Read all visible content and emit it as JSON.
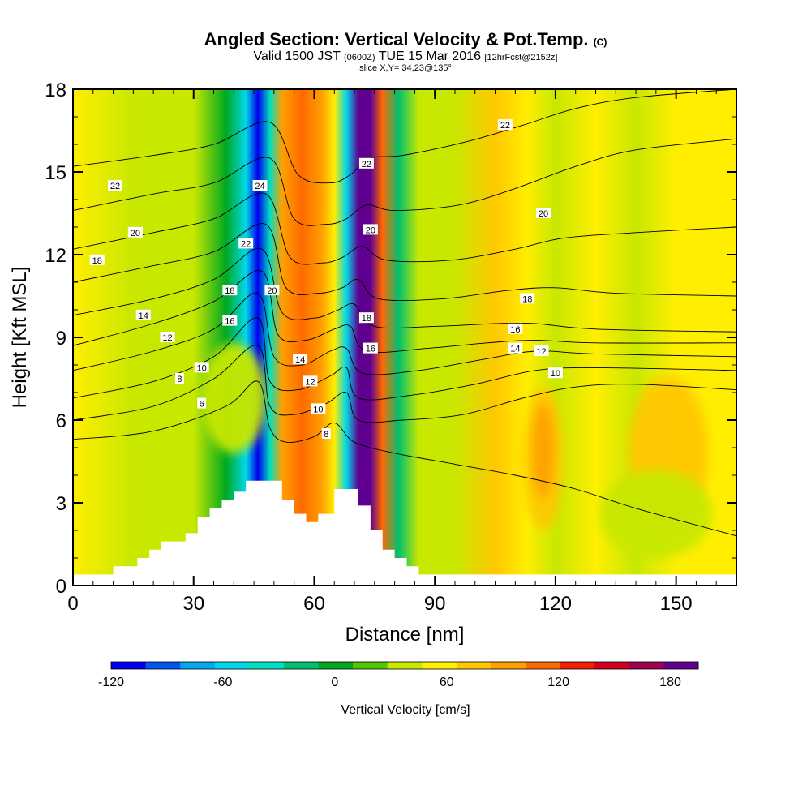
{
  "header": {
    "title": "Angled Section: Vertical Velocity & Pot.Temp.",
    "title_unit": "(C)",
    "valid_prefix": "Valid 1500 JST",
    "valid_zulu": "(0600Z)",
    "valid_date": "TUE 15 Mar 2016",
    "forecast": "[12hrFcst@2152z]",
    "slice": "slice X,Y= 34,23@135°"
  },
  "chart_data": {
    "type": "heatmap",
    "xlabel": "Distance [nm]",
    "ylabel": "Height [Kft MSL]",
    "xlim": [
      0,
      165
    ],
    "ylim": [
      0,
      18
    ],
    "x_ticks": [
      0,
      30,
      60,
      90,
      120,
      150
    ],
    "y_ticks": [
      0,
      3,
      6,
      9,
      12,
      15,
      18
    ],
    "colorbar": {
      "label": "Vertical Velocity [cm/s]",
      "ticks": [
        -120,
        -60,
        0,
        60,
        120,
        180
      ],
      "range": [
        -120,
        195
      ],
      "step": 15,
      "colors": [
        "#0000ee",
        "#0055f0",
        "#00a8f0",
        "#00d8e8",
        "#00e0c0",
        "#00c070",
        "#00a820",
        "#50c800",
        "#c8e800",
        "#ffee00",
        "#ffc800",
        "#ffa000",
        "#ff6a00",
        "#f02000",
        "#d00020",
        "#a00050",
        "#600090"
      ]
    },
    "velocity_columns": [
      {
        "x": 0,
        "value": 15
      },
      {
        "x": 15,
        "value": 5
      },
      {
        "x": 22,
        "value": 0
      },
      {
        "x": 30,
        "value": 5
      },
      {
        "x": 38,
        "value": -30
      },
      {
        "x": 43,
        "value": -75
      },
      {
        "x": 46,
        "value": -115
      },
      {
        "x": 49,
        "value": -60
      },
      {
        "x": 52,
        "value": 45
      },
      {
        "x": 57,
        "value": 60
      },
      {
        "x": 62,
        "value": 50
      },
      {
        "x": 65,
        "value": 15
      },
      {
        "x": 68,
        "value": -70
      },
      {
        "x": 71,
        "value": 120
      },
      {
        "x": 74,
        "value": 150
      },
      {
        "x": 77,
        "value": 60
      },
      {
        "x": 81,
        "value": -40
      },
      {
        "x": 86,
        "value": 0
      },
      {
        "x": 95,
        "value": 10
      },
      {
        "x": 105,
        "value": 30
      },
      {
        "x": 113,
        "value": 20
      },
      {
        "x": 120,
        "value": 10
      },
      {
        "x": 130,
        "value": 15
      },
      {
        "x": 140,
        "value": 0
      },
      {
        "x": 150,
        "value": 25
      },
      {
        "x": 165,
        "value": 15
      }
    ],
    "terrain": [
      [
        0,
        0.4
      ],
      [
        10,
        0.4
      ],
      [
        10,
        0.7
      ],
      [
        16,
        0.7
      ],
      [
        16,
        1.0
      ],
      [
        19,
        1.0
      ],
      [
        19,
        1.3
      ],
      [
        22,
        1.3
      ],
      [
        22,
        1.6
      ],
      [
        28,
        1.6
      ],
      [
        28,
        1.9
      ],
      [
        31,
        1.9
      ],
      [
        31,
        2.5
      ],
      [
        34,
        2.5
      ],
      [
        34,
        2.8
      ],
      [
        37,
        2.8
      ],
      [
        37,
        3.1
      ],
      [
        40,
        3.1
      ],
      [
        40,
        3.4
      ],
      [
        43,
        3.4
      ],
      [
        43,
        3.8
      ],
      [
        52,
        3.8
      ],
      [
        52,
        3.1
      ],
      [
        55,
        3.1
      ],
      [
        55,
        2.6
      ],
      [
        58,
        2.6
      ],
      [
        58,
        2.3
      ],
      [
        61,
        2.3
      ],
      [
        61,
        2.6
      ],
      [
        65,
        2.6
      ],
      [
        65,
        3.5
      ],
      [
        71,
        3.5
      ],
      [
        71,
        2.9
      ],
      [
        74,
        2.9
      ],
      [
        74,
        2.0
      ],
      [
        77,
        2.0
      ],
      [
        77,
        1.3
      ],
      [
        80,
        1.3
      ],
      [
        80,
        1.0
      ],
      [
        83,
        1.0
      ],
      [
        83,
        0.7
      ],
      [
        86,
        0.7
      ],
      [
        86,
        0.4
      ],
      [
        90,
        0.4
      ],
      [
        165,
        0.4
      ]
    ],
    "isotherms": [
      {
        "value": 6,
        "points": [
          [
            0,
            5.3
          ],
          [
            20,
            5.6
          ],
          [
            38,
            6.5
          ],
          [
            46,
            7.4
          ],
          [
            49,
            5.7
          ],
          [
            53,
            5.2
          ],
          [
            60,
            5.4
          ],
          [
            65,
            5.9
          ],
          [
            70,
            5.2
          ],
          [
            80,
            4.8
          ],
          [
            95,
            4.4
          ],
          [
            110,
            4.0
          ],
          [
            125,
            3.5
          ],
          [
            140,
            2.8
          ],
          [
            165,
            1.8
          ]
        ]
      },
      {
        "value": 8,
        "points": [
          [
            0,
            6.0
          ],
          [
            20,
            6.5
          ],
          [
            35,
            7.5
          ],
          [
            46,
            8.7
          ],
          [
            49,
            6.5
          ],
          [
            55,
            6.2
          ],
          [
            63,
            6.6
          ],
          [
            68,
            7.0
          ],
          [
            71,
            6.0
          ],
          [
            82,
            6.0
          ],
          [
            97,
            6.2
          ],
          [
            112,
            6.8
          ],
          [
            125,
            7.2
          ],
          [
            140,
            7.3
          ],
          [
            165,
            7.1
          ]
        ]
      },
      {
        "value": 10,
        "points": [
          [
            0,
            6.8
          ],
          [
            20,
            7.4
          ],
          [
            35,
            8.3
          ],
          [
            46,
            9.7
          ],
          [
            49,
            7.4
          ],
          [
            56,
            7.1
          ],
          [
            64,
            7.6
          ],
          [
            68,
            7.9
          ],
          [
            71,
            6.8
          ],
          [
            84,
            6.9
          ],
          [
            100,
            7.3
          ],
          [
            115,
            7.8
          ],
          [
            130,
            7.9
          ],
          [
            165,
            7.8
          ]
        ]
      },
      {
        "value": 12,
        "points": [
          [
            0,
            7.8
          ],
          [
            20,
            8.5
          ],
          [
            35,
            9.3
          ],
          [
            46,
            10.6
          ],
          [
            50,
            8.3
          ],
          [
            57,
            8.0
          ],
          [
            64,
            8.5
          ],
          [
            68,
            8.6
          ],
          [
            72,
            7.7
          ],
          [
            86,
            7.8
          ],
          [
            102,
            8.2
          ],
          [
            115,
            8.5
          ],
          [
            130,
            8.4
          ],
          [
            165,
            8.3
          ]
        ]
      },
      {
        "value": 14,
        "points": [
          [
            0,
            8.7
          ],
          [
            20,
            9.5
          ],
          [
            35,
            10.3
          ],
          [
            47,
            11.4
          ],
          [
            51,
            9.1
          ],
          [
            58,
            8.9
          ],
          [
            65,
            9.3
          ],
          [
            69,
            9.4
          ],
          [
            73,
            8.5
          ],
          [
            88,
            8.6
          ],
          [
            103,
            8.8
          ],
          [
            115,
            8.9
          ],
          [
            130,
            8.8
          ],
          [
            165,
            8.8
          ]
        ]
      },
      {
        "value": 16,
        "points": [
          [
            0,
            9.8
          ],
          [
            20,
            10.4
          ],
          [
            35,
            11.1
          ],
          [
            47,
            12.2
          ],
          [
            52,
            9.9
          ],
          [
            60,
            9.7
          ],
          [
            66,
            10.0
          ],
          [
            70,
            10.2
          ],
          [
            75,
            9.4
          ],
          [
            90,
            9.4
          ],
          [
            105,
            9.5
          ],
          [
            115,
            9.5
          ],
          [
            130,
            9.3
          ],
          [
            165,
            9.2
          ]
        ]
      },
      {
        "value": 18,
        "points": [
          [
            0,
            11.0
          ],
          [
            20,
            11.6
          ],
          [
            35,
            12.1
          ],
          [
            48,
            13.1
          ],
          [
            53,
            10.8
          ],
          [
            61,
            10.6
          ],
          [
            67,
            10.8
          ],
          [
            71,
            11.1
          ],
          [
            76,
            10.4
          ],
          [
            92,
            10.4
          ],
          [
            108,
            10.7
          ],
          [
            120,
            10.8
          ],
          [
            135,
            10.6
          ],
          [
            165,
            10.5
          ]
        ]
      },
      {
        "value": 20,
        "points": [
          [
            0,
            12.2
          ],
          [
            20,
            12.8
          ],
          [
            35,
            13.3
          ],
          [
            48,
            14.2
          ],
          [
            54,
            11.9
          ],
          [
            62,
            11.7
          ],
          [
            67,
            11.9
          ],
          [
            72,
            12.3
          ],
          [
            78,
            11.8
          ],
          [
            94,
            11.8
          ],
          [
            110,
            12.2
          ],
          [
            122,
            12.6
          ],
          [
            140,
            12.8
          ],
          [
            165,
            13.0
          ]
        ]
      },
      {
        "value": 22,
        "points": [
          [
            0,
            13.6
          ],
          [
            20,
            14.2
          ],
          [
            35,
            14.6
          ],
          [
            49,
            15.5
          ],
          [
            55,
            13.3
          ],
          [
            63,
            13.1
          ],
          [
            68,
            13.3
          ],
          [
            73,
            13.8
          ],
          [
            80,
            13.6
          ],
          [
            96,
            13.8
          ],
          [
            110,
            14.4
          ],
          [
            125,
            15.2
          ],
          [
            140,
            15.8
          ],
          [
            165,
            16.2
          ]
        ]
      },
      {
        "value": 24,
        "points": [
          [
            0,
            15.2
          ],
          [
            20,
            15.6
          ],
          [
            35,
            16.0
          ],
          [
            49,
            16.8
          ],
          [
            56,
            14.9
          ],
          [
            64,
            14.6
          ],
          [
            69,
            14.9
          ],
          [
            74,
            15.5
          ],
          [
            82,
            15.6
          ],
          [
            98,
            16.1
          ],
          [
            112,
            16.7
          ],
          [
            125,
            17.3
          ],
          [
            140,
            17.7
          ],
          [
            165,
            18.0
          ]
        ]
      }
    ],
    "contour_labels": [
      {
        "text": "22",
        "x": 10.5,
        "y": 14.5
      },
      {
        "text": "20",
        "x": 15.5,
        "y": 12.8
      },
      {
        "text": "18",
        "x": 6,
        "y": 11.8
      },
      {
        "text": "14",
        "x": 17.5,
        "y": 9.8
      },
      {
        "text": "12",
        "x": 23.5,
        "y": 9.0
      },
      {
        "text": "10",
        "x": 32,
        "y": 7.9
      },
      {
        "text": "8",
        "x": 26.5,
        "y": 7.5
      },
      {
        "text": "6",
        "x": 32,
        "y": 6.6
      },
      {
        "text": "24",
        "x": 46.5,
        "y": 14.5
      },
      {
        "text": "22",
        "x": 43,
        "y": 12.4
      },
      {
        "text": "18",
        "x": 39,
        "y": 10.7
      },
      {
        "text": "16",
        "x": 39,
        "y": 9.6
      },
      {
        "text": "20",
        "x": 49.5,
        "y": 10.7
      },
      {
        "text": "14",
        "x": 56.5,
        "y": 8.2
      },
      {
        "text": "12",
        "x": 59,
        "y": 7.4
      },
      {
        "text": "10",
        "x": 61,
        "y": 6.4
      },
      {
        "text": "8",
        "x": 63,
        "y": 5.5
      },
      {
        "text": "22",
        "x": 73,
        "y": 15.3
      },
      {
        "text": "20",
        "x": 74,
        "y": 12.9
      },
      {
        "text": "18",
        "x": 73,
        "y": 9.7
      },
      {
        "text": "16",
        "x": 74,
        "y": 8.6
      },
      {
        "text": "22",
        "x": 107.5,
        "y": 16.7
      },
      {
        "text": "20",
        "x": 117,
        "y": 13.5
      },
      {
        "text": "18",
        "x": 113,
        "y": 10.4
      },
      {
        "text": "16",
        "x": 110,
        "y": 9.3
      },
      {
        "text": "14",
        "x": 110,
        "y": 8.6
      },
      {
        "text": "12",
        "x": 116.5,
        "y": 8.5
      },
      {
        "text": "10",
        "x": 120,
        "y": 7.7
      }
    ],
    "blobs": [
      {
        "cx": 117,
        "cy": 4.6,
        "rx": 5,
        "ry": 2.6,
        "value": 40
      },
      {
        "cx": 117,
        "cy": 4.9,
        "rx": 2.6,
        "ry": 1.7,
        "value": 55
      },
      {
        "cx": 148,
        "cy": 4.8,
        "rx": 10,
        "ry": 2.8,
        "value": 30
      },
      {
        "cx": 145,
        "cy": 2.6,
        "rx": 14,
        "ry": 1.6,
        "value": 5
      },
      {
        "cx": 40,
        "cy": 6.8,
        "rx": 8,
        "ry": 2.0,
        "value": 5
      }
    ],
    "grid": false
  }
}
